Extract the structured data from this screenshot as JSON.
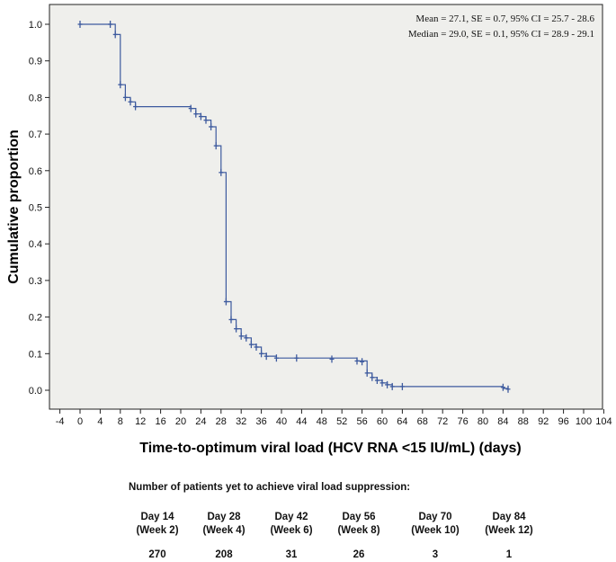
{
  "chart_data": {
    "type": "kaplan-meier step line",
    "xlabel": "Time-to-optimum viral load (HCV RNA <15 IU/mL) (days)",
    "ylabel": "Cumulative proportion",
    "xlim": [
      -4,
      104
    ],
    "ylim": [
      0,
      1.0
    ],
    "x_ticks": [
      -4,
      0,
      4,
      8,
      12,
      16,
      20,
      24,
      28,
      32,
      36,
      40,
      44,
      48,
      52,
      56,
      60,
      64,
      68,
      72,
      76,
      80,
      84,
      88,
      92,
      96,
      100,
      104
    ],
    "y_ticks": [
      "0.0",
      "0.1",
      "0.2",
      "0.3",
      "0.4",
      "0.5",
      "0.6",
      "0.7",
      "0.8",
      "0.9",
      "1.0"
    ],
    "annotations": [
      "Mean = 27.1, SE = 0.7, 95% CI = 25.7 - 28.6",
      "Median = 29.0, SE = 0.1, 95% CI = 28.9 - 29.1"
    ],
    "step_points": [
      [
        0,
        1.0
      ],
      [
        7,
        1.0
      ],
      [
        7,
        0.972
      ],
      [
        8,
        0.972
      ],
      [
        8,
        0.835
      ],
      [
        9,
        0.835
      ],
      [
        9,
        0.8
      ],
      [
        10,
        0.8
      ],
      [
        10,
        0.788
      ],
      [
        11,
        0.788
      ],
      [
        11,
        0.775
      ],
      [
        22,
        0.775
      ],
      [
        22,
        0.77
      ],
      [
        23,
        0.77
      ],
      [
        23,
        0.755
      ],
      [
        24,
        0.755
      ],
      [
        24,
        0.748
      ],
      [
        25,
        0.748
      ],
      [
        25,
        0.738
      ],
      [
        26,
        0.738
      ],
      [
        26,
        0.72
      ],
      [
        27,
        0.72
      ],
      [
        27,
        0.668
      ],
      [
        28,
        0.668
      ],
      [
        28,
        0.595
      ],
      [
        29,
        0.595
      ],
      [
        29,
        0.242
      ],
      [
        30,
        0.242
      ],
      [
        30,
        0.193
      ],
      [
        31,
        0.193
      ],
      [
        31,
        0.168
      ],
      [
        32,
        0.168
      ],
      [
        32,
        0.148
      ],
      [
        33,
        0.148
      ],
      [
        33,
        0.143
      ],
      [
        34,
        0.143
      ],
      [
        34,
        0.125
      ],
      [
        35,
        0.125
      ],
      [
        35,
        0.118
      ],
      [
        36,
        0.118
      ],
      [
        36,
        0.1
      ],
      [
        37,
        0.1
      ],
      [
        37,
        0.093
      ],
      [
        39,
        0.093
      ],
      [
        39,
        0.088
      ],
      [
        55,
        0.088
      ],
      [
        55,
        0.08
      ],
      [
        57,
        0.08
      ],
      [
        57,
        0.047
      ],
      [
        58,
        0.047
      ],
      [
        58,
        0.035
      ],
      [
        59,
        0.035
      ],
      [
        59,
        0.027
      ],
      [
        60,
        0.027
      ],
      [
        60,
        0.02
      ],
      [
        61,
        0.02
      ],
      [
        61,
        0.015
      ],
      [
        62,
        0.015
      ],
      [
        62,
        0.01
      ],
      [
        84,
        0.01
      ],
      [
        84,
        0.005
      ],
      [
        85,
        0.005
      ],
      [
        85,
        0.002
      ]
    ],
    "censor_marks": [
      [
        0,
        1.0
      ],
      [
        6,
        1.0
      ],
      [
        7,
        0.972
      ],
      [
        8,
        0.835
      ],
      [
        9,
        0.8
      ],
      [
        10,
        0.788
      ],
      [
        11,
        0.775
      ],
      [
        22,
        0.77
      ],
      [
        23,
        0.755
      ],
      [
        24,
        0.748
      ],
      [
        25,
        0.738
      ],
      [
        26,
        0.72
      ],
      [
        27,
        0.668
      ],
      [
        28,
        0.595
      ],
      [
        29,
        0.242
      ],
      [
        30,
        0.193
      ],
      [
        31,
        0.168
      ],
      [
        32,
        0.148
      ],
      [
        33,
        0.143
      ],
      [
        34,
        0.125
      ],
      [
        35,
        0.118
      ],
      [
        36,
        0.1
      ],
      [
        37,
        0.093
      ],
      [
        39,
        0.088
      ],
      [
        43,
        0.088
      ],
      [
        50,
        0.085
      ],
      [
        55,
        0.08
      ],
      [
        56,
        0.078
      ],
      [
        57,
        0.047
      ],
      [
        58,
        0.035
      ],
      [
        59,
        0.027
      ],
      [
        60,
        0.02
      ],
      [
        61,
        0.015
      ],
      [
        62,
        0.01
      ],
      [
        64,
        0.01
      ],
      [
        84,
        0.008
      ],
      [
        85,
        0.003
      ]
    ],
    "line_color": "#3d5a9e",
    "background_color": "#efefec"
  },
  "risk_table": {
    "title": "Number of patients yet to achieve viral load suppression:",
    "columns": [
      {
        "day": "Day 14",
        "week": "(Week 2)",
        "count": "270"
      },
      {
        "day": "Day 28",
        "week": "(Week 4)",
        "count": "208"
      },
      {
        "day": "Day 42",
        "week": "(Week 6)",
        "count": "31"
      },
      {
        "day": "Day 56",
        "week": "(Week 8)",
        "count": "26"
      },
      {
        "day": "Day 70",
        "week": "(Week 10)",
        "count": "3"
      },
      {
        "day": "Day 84",
        "week": "(Week 12)",
        "count": "1"
      }
    ]
  }
}
